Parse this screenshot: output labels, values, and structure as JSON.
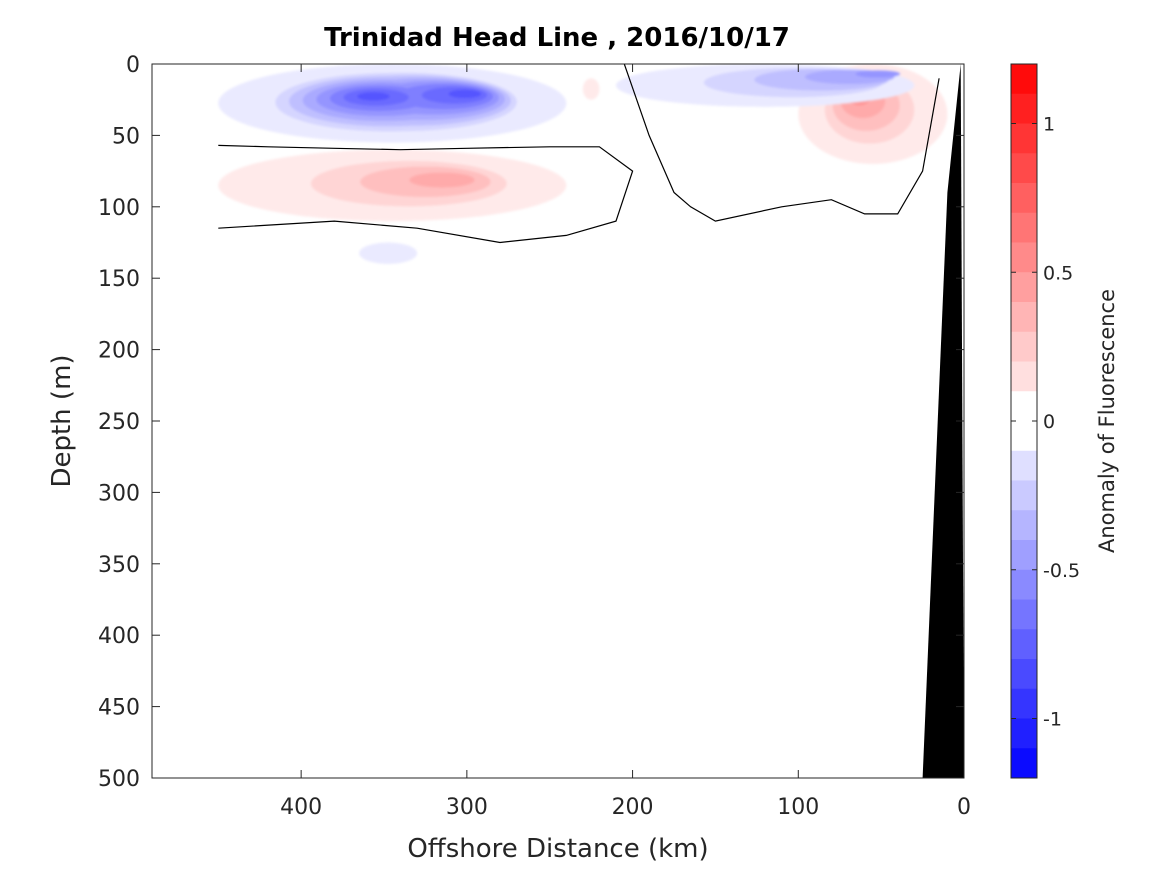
{
  "chart_data": {
    "type": "heatmap",
    "subtype": "filled contour section",
    "title": "Trinidad Head Line , 2016/10/17",
    "xlabel": "Offshore Distance (km)",
    "ylabel": "Depth (m)",
    "xlim": [
      490,
      0
    ],
    "x_reversed": true,
    "ylim": [
      0,
      500
    ],
    "y_reversed": true,
    "xticks": [
      400,
      300,
      200,
      100,
      0
    ],
    "yticks": [
      0,
      50,
      100,
      150,
      200,
      250,
      300,
      350,
      400,
      450,
      500
    ],
    "grid": false,
    "colorbar": {
      "label": "Anomaly of Fluorescence",
      "limits": [
        -1.2,
        1.2
      ],
      "step": 0.1,
      "ticks": [
        -1,
        -0.5,
        0,
        0.5,
        1
      ],
      "tick_labels": [
        "-1",
        "-0.5",
        "0",
        "0.5",
        "1"
      ],
      "colormap": "blue-white-red",
      "colors": {
        "negative": "#0000ff",
        "zero": "#ffffff",
        "positive": "#ff0000"
      }
    },
    "features": [
      {
        "name": "offshore subsurface minimum",
        "sign": "negative",
        "distance_km": [
          450,
          240
        ],
        "depth_m": [
          0,
          55
        ],
        "peak_value": -0.8,
        "peak_location_km_m": [
          [
            358,
            22
          ],
          [
            295,
            20
          ]
        ]
      },
      {
        "name": "offshore subsurface maximum",
        "sign": "positive",
        "distance_km": [
          450,
          240
        ],
        "depth_m": [
          60,
          110
        ],
        "peak_value": 0.4,
        "peak_location_km_m": [
          [
            305,
            80
          ]
        ]
      },
      {
        "name": "weak deep minimum",
        "sign": "negative",
        "distance_km": [
          365,
          330
        ],
        "depth_m": [
          125,
          140
        ],
        "peak_value": -0.1
      },
      {
        "name": "nearshore surface maximum",
        "sign": "positive",
        "distance_km": [
          100,
          10
        ],
        "depth_m": [
          0,
          70
        ],
        "peak_value": 0.5,
        "peak_location_km_m": [
          [
            65,
            20
          ]
        ]
      },
      {
        "name": "nearshore surface minimum",
        "sign": "negative",
        "distance_km": [
          210,
          30
        ],
        "depth_m": [
          0,
          30
        ],
        "peak_value": -0.5,
        "peak_location_km_m": [
          [
            35,
            5
          ]
        ]
      },
      {
        "name": "surface maximum near 225 km",
        "sign": "positive",
        "distance_km": [
          230,
          220
        ],
        "depth_m": [
          10,
          25
        ],
        "peak_value": 0.15
      }
    ],
    "zero_contour": {
      "color": "#000000",
      "offshore_segment": {
        "distance_km": [
          450,
          420,
          380,
          340,
          300,
          250,
          220,
          200,
          210,
          240,
          280,
          330,
          380,
          450
        ],
        "depth_m": [
          57,
          58,
          59,
          60,
          59,
          58,
          58,
          75,
          110,
          120,
          125,
          115,
          110,
          115
        ]
      },
      "nearshore_segment": {
        "distance_km": [
          205,
          190,
          175,
          165,
          150,
          110,
          80,
          60,
          40,
          25,
          15
        ],
        "depth_m": [
          0,
          50,
          90,
          100,
          110,
          100,
          95,
          105,
          105,
          75,
          10
        ]
      }
    },
    "bathymetry": {
      "color": "#000000",
      "distance_km": [
        2,
        10,
        25,
        0
      ],
      "depth_m": [
        0,
        90,
        500,
        500
      ]
    }
  }
}
